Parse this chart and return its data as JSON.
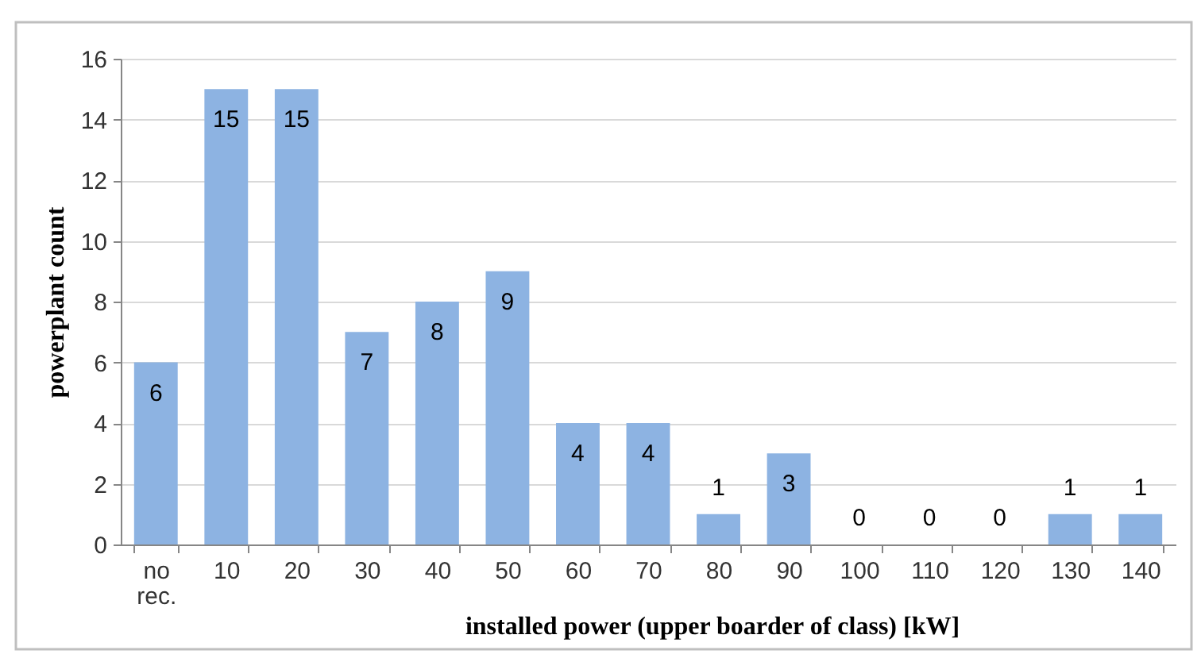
{
  "chart_data": {
    "type": "bar",
    "xlabel": "installed power (upper boarder of class) [kW]",
    "ylabel": "powerplant count",
    "categories": [
      "no rec.",
      "10",
      "20",
      "30",
      "40",
      "50",
      "60",
      "70",
      "80",
      "90",
      "100",
      "110",
      "120",
      "130",
      "140"
    ],
    "values": [
      6,
      15,
      15,
      7,
      8,
      9,
      4,
      4,
      1,
      3,
      0,
      0,
      0,
      1,
      1
    ],
    "color": "#8db3e2",
    "ylim": [
      0,
      16
    ],
    "yticks": [
      0,
      2,
      4,
      6,
      8,
      10,
      12,
      14,
      16
    ],
    "grid": "y",
    "data_labels": true
  }
}
